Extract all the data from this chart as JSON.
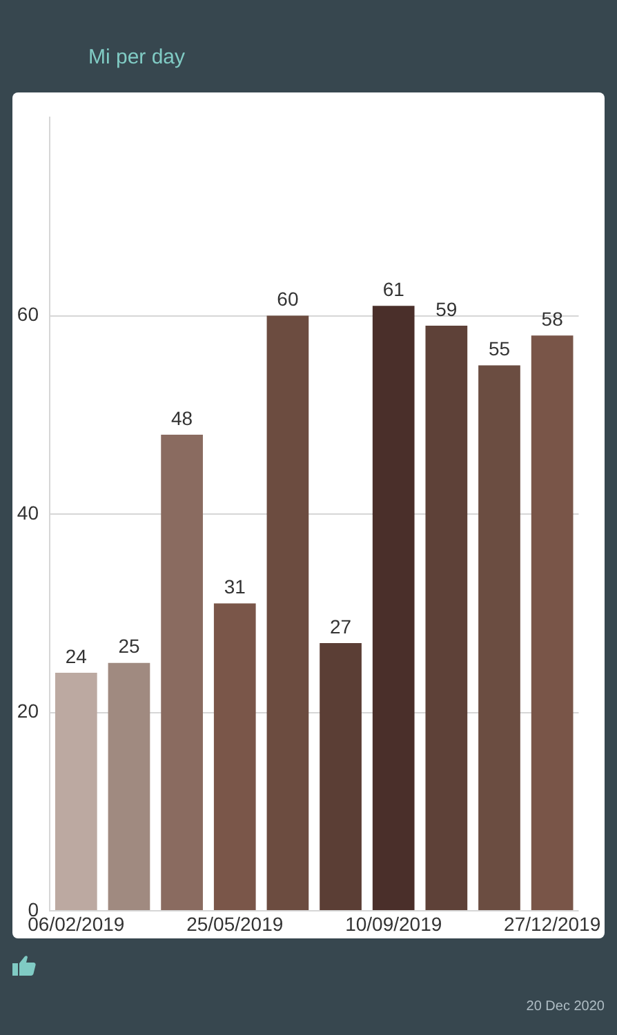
{
  "chart_data": {
    "type": "bar",
    "subtitle": "Mi per day",
    "categories": [
      "06/02/2019",
      null,
      null,
      "25/05/2019",
      null,
      null,
      "10/09/2019",
      null,
      null,
      "27/12/2019"
    ],
    "values": [
      24,
      25,
      48,
      31,
      60,
      27,
      61,
      59,
      55,
      58
    ],
    "colors": [
      "#bca9a1",
      "#a08a80",
      "#8a6b60",
      "#7a5649",
      "#6c4c40",
      "#5b3e35",
      "#4a2f2a",
      "#5e4138",
      "#6b4d41",
      "#795548"
    ],
    "ylim": [
      0,
      80
    ],
    "yticks": [
      0,
      20,
      40,
      60
    ],
    "grid": "y",
    "data_labels": true,
    "annotations": [
      "20 Dec 2020"
    ]
  }
}
